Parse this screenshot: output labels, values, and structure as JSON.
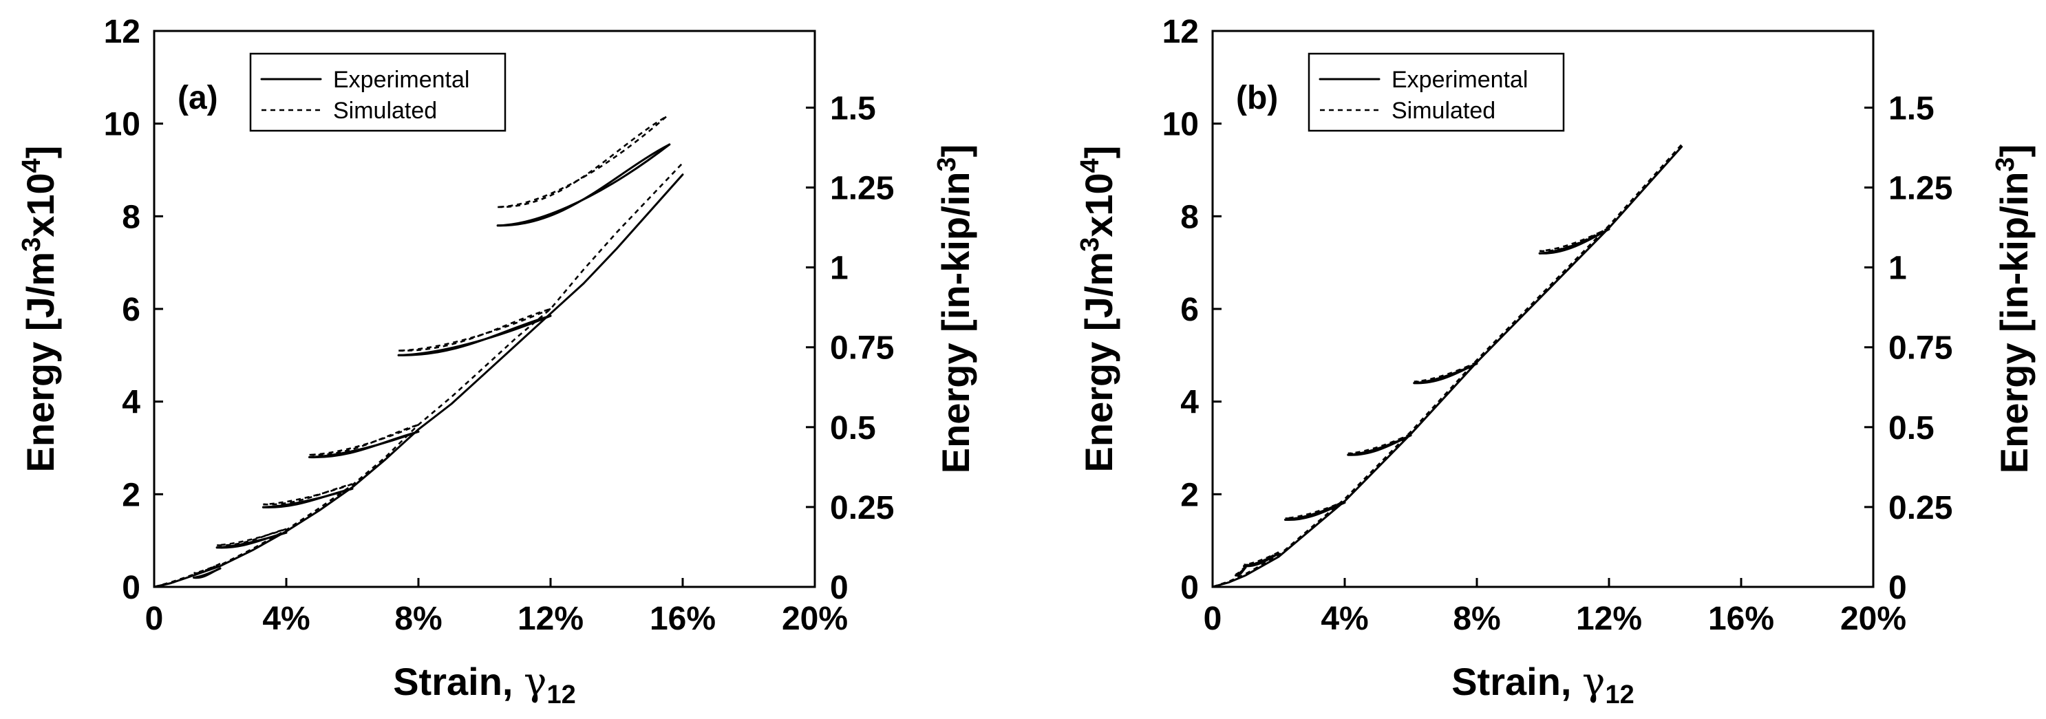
{
  "chart_data": [
    {
      "type": "line",
      "panel_label": "(a)",
      "xlabel": "Strain, ",
      "xlabel_symbol": "γ",
      "xlabel_subscript": "12",
      "ylabel_left": {
        "pre": "Energy [J/m",
        "sup1": "3",
        "mid": "x10",
        "sup2": "4",
        "post": "]"
      },
      "ylabel_right": {
        "pre": "Energy [in-kip/in",
        "sup1": "3",
        "post": "]"
      },
      "xlim": [
        0,
        20
      ],
      "ylim": [
        0,
        12
      ],
      "x_ticks": [
        0,
        4,
        8,
        12,
        16,
        20
      ],
      "x_tick_labels": [
        "0",
        "4%",
        "8%",
        "12%",
        "16%",
        "20%"
      ],
      "y_ticks": [
        0,
        2,
        4,
        6,
        8,
        10,
        12
      ],
      "y_tick_labels": [
        "0",
        "2",
        "4",
        "6",
        "8",
        "10",
        "12"
      ],
      "y2_ticks": [
        0,
        0.25,
        0.5,
        0.75,
        1,
        1.25,
        1.5
      ],
      "y2_tick_labels": [
        "0",
        "0.25",
        "0.5",
        "0.75",
        "1",
        "1.25",
        "1.5"
      ],
      "y2_per_y": 0.145,
      "legend": [
        {
          "label": "Experimental",
          "style": "solid"
        },
        {
          "label": "Simulated",
          "style": "dashed"
        }
      ],
      "cycles": [
        {
          "peak": [
            2.0,
            0.45
          ],
          "start": [
            1.2,
            0.2
          ]
        },
        {
          "peak": [
            4.0,
            1.2
          ],
          "start": [
            1.9,
            0.85
          ]
        },
        {
          "peak": [
            6.0,
            2.15
          ],
          "start": [
            3.3,
            1.72
          ]
        },
        {
          "peak": [
            8.0,
            3.4
          ],
          "start": [
            4.7,
            2.8
          ]
        },
        {
          "peak": [
            12.0,
            5.9
          ],
          "start": [
            7.4,
            5.0
          ]
        },
        {
          "peak": [
            16.0,
            8.9
          ],
          "start": [
            10.4,
            7.8
          ]
        }
      ],
      "series": [
        {
          "name": "Experimental",
          "envelope": [
            [
              0,
              0
            ],
            [
              0.5,
              0.08
            ],
            [
              1,
              0.2
            ],
            [
              2,
              0.45
            ],
            [
              3,
              0.8
            ],
            [
              4,
              1.2
            ],
            [
              5,
              1.65
            ],
            [
              6,
              2.15
            ],
            [
              7,
              2.75
            ],
            [
              8,
              3.4
            ],
            [
              9,
              3.95
            ],
            [
              10,
              4.6
            ],
            [
              11,
              5.25
            ],
            [
              12,
              5.9
            ],
            [
              13,
              6.55
            ],
            [
              14,
              7.3
            ],
            [
              15,
              8.1
            ],
            [
              16,
              8.9
            ]
          ],
          "unload_peaks": [
            [
              2.0,
              0.4
            ],
            [
              4.0,
              1.17
            ],
            [
              6.0,
              2.12
            ],
            [
              8.0,
              3.35
            ],
            [
              12.0,
              5.85
            ],
            [
              15.6,
              9.55
            ]
          ],
          "unload_tilt": 0.32
        },
        {
          "name": "Simulated",
          "envelope": [
            [
              0,
              0
            ],
            [
              0.5,
              0.1
            ],
            [
              1,
              0.22
            ],
            [
              2,
              0.47
            ],
            [
              3,
              0.83
            ],
            [
              4,
              1.23
            ],
            [
              5,
              1.7
            ],
            [
              6,
              2.2
            ],
            [
              7,
              2.8
            ],
            [
              8,
              3.5
            ],
            [
              9,
              4.1
            ],
            [
              10,
              4.75
            ],
            [
              11,
              5.4
            ],
            [
              12,
              6.0
            ],
            [
              13,
              6.85
            ],
            [
              14,
              7.65
            ],
            [
              15,
              8.4
            ],
            [
              16,
              9.15
            ]
          ],
          "unload_peaks": [
            [
              2.0,
              0.5
            ],
            [
              4.0,
              1.25
            ],
            [
              6.0,
              2.22
            ],
            [
              8.0,
              3.5
            ],
            [
              12.0,
              6.0
            ],
            [
              15.5,
              10.15
            ]
          ],
          "unload_tilt": 0.32,
          "reload_starts": [
            [
              1.2,
              0.3
            ],
            [
              1.9,
              0.9
            ],
            [
              3.3,
              1.78
            ],
            [
              4.7,
              2.85
            ],
            [
              7.4,
              5.1
            ],
            [
              10.4,
              8.2
            ]
          ]
        }
      ]
    },
    {
      "type": "line",
      "panel_label": "(b)",
      "xlabel": "Strain, ",
      "xlabel_symbol": "γ",
      "xlabel_subscript": "12",
      "ylabel_left": {
        "pre": "Energy [J/m",
        "sup1": "3",
        "mid": "x10",
        "sup2": "4",
        "post": "]"
      },
      "ylabel_right": {
        "pre": "Energy [in-kip/in",
        "sup1": "3",
        "post": "]"
      },
      "xlim": [
        0,
        20
      ],
      "ylim": [
        0,
        12
      ],
      "x_ticks": [
        0,
        4,
        8,
        12,
        16,
        20
      ],
      "x_tick_labels": [
        "0",
        "4%",
        "8%",
        "12%",
        "16%",
        "20%"
      ],
      "y_ticks": [
        0,
        2,
        4,
        6,
        8,
        10,
        12
      ],
      "y_tick_labels": [
        "0",
        "2",
        "4",
        "6",
        "8",
        "10",
        "12"
      ],
      "y2_ticks": [
        0,
        0.25,
        0.5,
        0.75,
        1,
        1.25,
        1.5
      ],
      "y2_tick_labels": [
        "0",
        "0.25",
        "0.5",
        "0.75",
        "1",
        "1.25",
        "1.5"
      ],
      "y2_per_y": 0.145,
      "legend": [
        {
          "label": "Experimental",
          "style": "solid"
        },
        {
          "label": "Simulated",
          "style": "dashed"
        }
      ],
      "cycles": [
        {
          "peak": [
            1.0,
            0.45
          ],
          "start": [
            0.7,
            0.25
          ]
        },
        {
          "peak": [
            2.0,
            0.75
          ],
          "start": [
            0.95,
            0.45
          ]
        },
        {
          "peak": [
            4.0,
            1.85
          ],
          "start": [
            2.2,
            1.45
          ]
        },
        {
          "peak": [
            6.0,
            3.3
          ],
          "start": [
            4.1,
            2.85
          ]
        },
        {
          "peak": [
            8.0,
            4.85
          ],
          "start": [
            6.1,
            4.4
          ]
        },
        {
          "peak": [
            12.0,
            7.75
          ],
          "start": [
            9.9,
            7.2
          ]
        }
      ],
      "series": [
        {
          "name": "Experimental",
          "envelope": [
            [
              0,
              0
            ],
            [
              0.5,
              0.1
            ],
            [
              1,
              0.25
            ],
            [
              2,
              0.65
            ],
            [
              4,
              1.85
            ],
            [
              6,
              3.3
            ],
            [
              8,
              4.85
            ],
            [
              10,
              6.3
            ],
            [
              12,
              7.75
            ],
            [
              14.2,
              9.5
            ]
          ],
          "unload_peaks": [
            [
              1.0,
              0.42
            ],
            [
              2.0,
              0.72
            ],
            [
              4.0,
              1.82
            ],
            [
              6.0,
              3.27
            ],
            [
              8.0,
              4.82
            ],
            [
              12.0,
              7.72
            ]
          ],
          "unload_tilt": 0.24
        },
        {
          "name": "Simulated",
          "envelope": [
            [
              0,
              0
            ],
            [
              0.5,
              0.12
            ],
            [
              1,
              0.28
            ],
            [
              2,
              0.68
            ],
            [
              4,
              1.9
            ],
            [
              6,
              3.35
            ],
            [
              8,
              4.9
            ],
            [
              10,
              6.35
            ],
            [
              12,
              7.8
            ],
            [
              14.2,
              9.55
            ]
          ],
          "unload_peaks": [
            [
              1.0,
              0.45
            ],
            [
              2.0,
              0.75
            ],
            [
              4.0,
              1.85
            ],
            [
              6.0,
              3.3
            ],
            [
              8.0,
              4.85
            ],
            [
              12.0,
              7.75
            ]
          ],
          "unload_tilt": 0.24,
          "reload_starts": [
            [
              0.7,
              0.27
            ],
            [
              0.95,
              0.48
            ],
            [
              2.2,
              1.48
            ],
            [
              4.1,
              2.88
            ],
            [
              6.1,
              4.43
            ],
            [
              9.9,
              7.25
            ]
          ]
        }
      ]
    }
  ]
}
